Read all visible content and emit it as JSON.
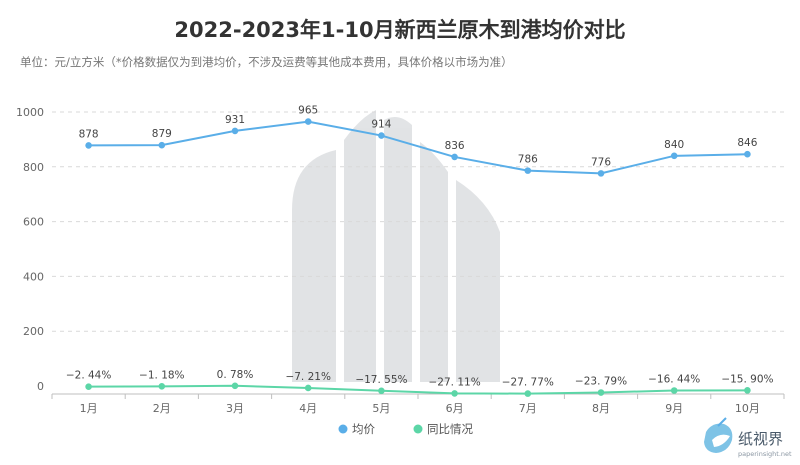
{
  "chart_data": {
    "type": "line",
    "title": "2022-2023年1-10月新西兰原木到港均价对比",
    "subtitle": "单位：元/立方米（*价格数据仅为到港均价，不涉及运费等其他成本费用，具体价格以市场为准）",
    "categories": [
      "1月",
      "2月",
      "3月",
      "4月",
      "5月",
      "6月",
      "7月",
      "8月",
      "9月",
      "10月"
    ],
    "ylim": [
      0,
      1000
    ],
    "yticks": [
      0,
      200,
      400,
      600,
      800,
      1000
    ],
    "grid": true,
    "legend_position": "bottom",
    "series": [
      {
        "name": "均价",
        "color": "#5aaee8",
        "values": [
          878,
          879,
          931,
          965,
          914,
          836,
          786,
          776,
          840,
          846
        ],
        "labels": [
          "878",
          "879",
          "931",
          "965",
          "914",
          "836",
          "786",
          "776",
          "840",
          "846"
        ]
      },
      {
        "name": "同比情况",
        "color": "#5cd6a7",
        "values": [
          -2.44,
          -1.18,
          0.78,
          -7.21,
          -17.55,
          -27.11,
          -27.77,
          -23.79,
          -16.44,
          -15.9
        ],
        "labels": [
          "−2. 44%",
          "−1. 18%",
          "0. 78%",
          "−7. 21%",
          "−17. 55%",
          "−27. 11%",
          "−27. 77%",
          "−23. 79%",
          "−16. 44%",
          "−15. 90%"
        ]
      }
    ]
  },
  "watermark": {
    "brand_text": "纸视界",
    "brand_url": "paperinsight.net"
  }
}
